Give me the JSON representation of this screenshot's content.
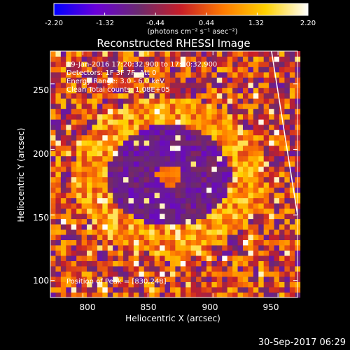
{
  "colorbar": {
    "ticks": [
      "-2.20",
      "-1.32",
      "-0.44",
      "0.44",
      "1.32",
      "2.20"
    ],
    "unit": "(photons cm⁻² s⁻¹ asec⁻²)",
    "colors": [
      "#0000ff",
      "#6a00d8",
      "#6b2a6f",
      "#c81e28",
      "#ff7a00",
      "#ffd200",
      "#ffffff"
    ]
  },
  "annotations": {
    "time": "19-Jan-2016 17:20:32.900 to 17:30:32.900",
    "detectors": "Detectors: 1F 3F 7F, Att 0",
    "energy": "Energy Range: 3.0 - 6.0 keV",
    "clean": "Clean    Total counts: 1.08E+05",
    "peak": "Position of Peak = [830,248]"
  },
  "footer": {
    "timestamp": "30-Sep-2017 06:29"
  },
  "chart_data": {
    "type": "heatmap",
    "title": "Reconstructed RHESSI Image",
    "xlabel": "Heliocentric X (arcsec)",
    "ylabel": "Heliocentric Y (arcsec)",
    "xlim": [
      775,
      965
    ],
    "ylim": [
      87,
      275
    ],
    "xticks": [
      "800",
      "850",
      "900",
      "950"
    ],
    "yticks": [
      "100",
      "150",
      "200",
      "250"
    ],
    "xtick_values": [
      800,
      850,
      900,
      950
    ],
    "ytick_values": [
      100,
      150,
      200,
      250
    ],
    "colorbar_range": [
      -2.2,
      2.2
    ],
    "source_center": [
      866,
      180
    ],
    "peak_position": [
      830,
      248
    ],
    "limb_line": [
      [
        945,
        275
      ],
      [
        965,
        150
      ]
    ]
  }
}
